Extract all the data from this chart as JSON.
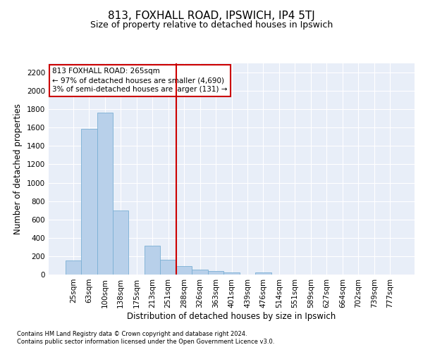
{
  "title": "813, FOXHALL ROAD, IPSWICH, IP4 5TJ",
  "subtitle": "Size of property relative to detached houses in Ipswich",
  "xlabel": "Distribution of detached houses by size in Ipswich",
  "ylabel": "Number of detached properties",
  "bar_labels": [
    "25sqm",
    "63sqm",
    "100sqm",
    "138sqm",
    "175sqm",
    "213sqm",
    "251sqm",
    "288sqm",
    "326sqm",
    "363sqm",
    "401sqm",
    "439sqm",
    "476sqm",
    "514sqm",
    "551sqm",
    "589sqm",
    "627sqm",
    "664sqm",
    "702sqm",
    "739sqm",
    "777sqm"
  ],
  "bar_values": [
    150,
    1590,
    1760,
    700,
    0,
    315,
    160,
    90,
    55,
    38,
    25,
    0,
    20,
    0,
    0,
    0,
    0,
    0,
    0,
    0,
    0
  ],
  "bar_color": "#b8d0ea",
  "bar_edge_color": "#7aafd4",
  "vline_x": 7.0,
  "vline_color": "#cc0000",
  "annotation_text": "813 FOXHALL ROAD: 265sqm\n← 97% of detached houses are smaller (4,690)\n3% of semi-detached houses are larger (131) →",
  "annotation_box_color": "#ffffff",
  "annotation_box_edge_color": "#cc0000",
  "ylim": [
    0,
    2300
  ],
  "yticks": [
    0,
    200,
    400,
    600,
    800,
    1000,
    1200,
    1400,
    1600,
    1800,
    2000,
    2200
  ],
  "background_color": "#e8eef8",
  "grid_color": "#ffffff",
  "footer_line1": "Contains HM Land Registry data © Crown copyright and database right 2024.",
  "footer_line2": "Contains public sector information licensed under the Open Government Licence v3.0.",
  "title_fontsize": 11,
  "subtitle_fontsize": 9,
  "xlabel_fontsize": 8.5,
  "ylabel_fontsize": 8.5,
  "tick_fontsize": 7.5,
  "annotation_fontsize": 7.5
}
